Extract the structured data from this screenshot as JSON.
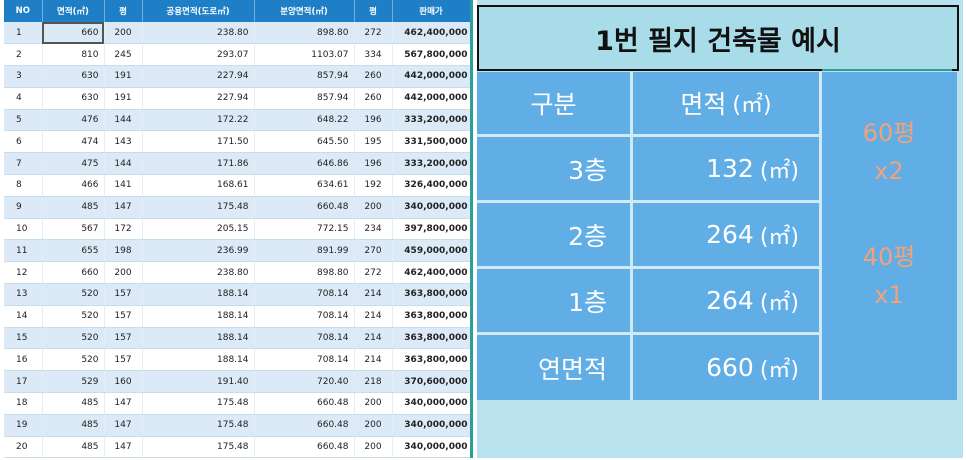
{
  "table": {
    "headers": [
      "NO",
      "면적(㎡)",
      "평",
      "공용면적(도로㎡)",
      "분양면적(㎡)",
      "평",
      "판매가"
    ],
    "rows": [
      [
        "1",
        "660",
        "200",
        "238.80",
        "898.80",
        "272",
        "462,400,000"
      ],
      [
        "2",
        "810",
        "245",
        "293.07",
        "1103.07",
        "334",
        "567,800,000"
      ],
      [
        "3",
        "630",
        "191",
        "227.94",
        "857.94",
        "260",
        "442,000,000"
      ],
      [
        "4",
        "630",
        "191",
        "227.94",
        "857.94",
        "260",
        "442,000,000"
      ],
      [
        "5",
        "476",
        "144",
        "172.22",
        "648.22",
        "196",
        "333,200,000"
      ],
      [
        "6",
        "474",
        "143",
        "171.50",
        "645.50",
        "195",
        "331,500,000"
      ],
      [
        "7",
        "475",
        "144",
        "171.86",
        "646.86",
        "196",
        "333,200,000"
      ],
      [
        "8",
        "466",
        "141",
        "168.61",
        "634.61",
        "192",
        "326,400,000"
      ],
      [
        "9",
        "485",
        "147",
        "175.48",
        "660.48",
        "200",
        "340,000,000"
      ],
      [
        "10",
        "567",
        "172",
        "205.15",
        "772.15",
        "234",
        "397,800,000"
      ],
      [
        "11",
        "655",
        "198",
        "236.99",
        "891.99",
        "270",
        "459,000,000"
      ],
      [
        "12",
        "660",
        "200",
        "238.80",
        "898.80",
        "272",
        "462,400,000"
      ],
      [
        "13",
        "520",
        "157",
        "188.14",
        "708.14",
        "214",
        "363,800,000"
      ],
      [
        "14",
        "520",
        "157",
        "188.14",
        "708.14",
        "214",
        "363,800,000"
      ],
      [
        "15",
        "520",
        "157",
        "188.14",
        "708.14",
        "214",
        "363,800,000"
      ],
      [
        "16",
        "520",
        "157",
        "188.14",
        "708.14",
        "214",
        "363,800,000"
      ],
      [
        "17",
        "529",
        "160",
        "191.40",
        "720.40",
        "218",
        "370,600,000"
      ],
      [
        "18",
        "485",
        "147",
        "175.48",
        "660.48",
        "200",
        "340,000,000"
      ],
      [
        "19",
        "485",
        "147",
        "175.48",
        "660.48",
        "200",
        "340,000,000"
      ],
      [
        "20",
        "485",
        "147",
        "175.48",
        "660.48",
        "200",
        "340,000,000"
      ]
    ]
  },
  "panel": {
    "title": "1번 필지 건축물 예시",
    "header_label": "구분",
    "header_area": "면적",
    "unit": "(㎡)",
    "rows": [
      {
        "label": "3층",
        "area": "132"
      },
      {
        "label": "2층",
        "area": "264"
      },
      {
        "label": "1층",
        "area": "264"
      },
      {
        "label": "연면적",
        "area": "660"
      }
    ],
    "side": {
      "top_line1": "60평",
      "top_line2": "x2",
      "bottom_line1": "40평",
      "bottom_line2": "x1"
    }
  },
  "colors": {
    "table_header": "#1f7fc6",
    "table_alt_row": "#dbeaf6",
    "panel_cell": "#61aee6",
    "panel_background": "#b9e2ee",
    "side_text": "#f2a27a"
  }
}
